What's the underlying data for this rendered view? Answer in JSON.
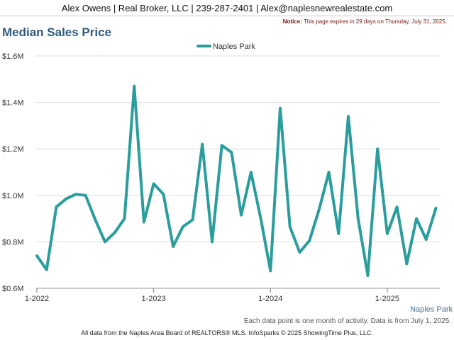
{
  "header": {
    "contact": "Alex Owens | Real Broker, LLC | 239-287-2401 | Alex@naplesnewrealestate.com",
    "notice_label": "Notice:",
    "notice_text": "This page expires in 29 days on Thursday, July 31, 2025."
  },
  "footer": {
    "source": "All data from the Naples Area Board of REALTORS® MLS. InfoSparks © 2025 ShowingTime Plus, LLC."
  },
  "colors": {
    "series": "#2a9d9c",
    "title": "#2f5b82",
    "grid": "#dddddd"
  },
  "chart_data": {
    "type": "line",
    "title": "Median Sales Price",
    "legend_position": "top-center",
    "grid": true,
    "ylim": [
      600000,
      1600000
    ],
    "y_ticks": [
      600000,
      800000,
      1000000,
      1200000,
      1400000,
      1600000
    ],
    "y_tick_labels": [
      "$0.6M",
      "$0.8M",
      "$1.0M",
      "$1.2M",
      "$1.4M",
      "$1.6M"
    ],
    "x_ticks": [
      "2022-01",
      "2023-01",
      "2024-01",
      "2025-01"
    ],
    "x_tick_labels": [
      "1-2022",
      "1-2023",
      "1-2024",
      "1-2025"
    ],
    "end_label": "Naples Park",
    "note": "Each data point is one month of activity. Data is from July 1, 2025.",
    "series": [
      {
        "name": "Naples Park",
        "x": [
          "2022-01",
          "2022-02",
          "2022-03",
          "2022-04",
          "2022-05",
          "2022-06",
          "2022-07",
          "2022-08",
          "2022-09",
          "2022-10",
          "2022-11",
          "2022-12",
          "2023-01",
          "2023-02",
          "2023-03",
          "2023-04",
          "2023-05",
          "2023-06",
          "2023-07",
          "2023-08",
          "2023-09",
          "2023-10",
          "2023-11",
          "2023-12",
          "2024-01",
          "2024-02",
          "2024-03",
          "2024-04",
          "2024-05",
          "2024-06",
          "2024-07",
          "2024-08",
          "2024-09",
          "2024-10",
          "2024-11",
          "2024-12",
          "2025-01",
          "2025-02",
          "2025-03",
          "2025-04",
          "2025-05",
          "2025-06"
        ],
        "values": [
          740000,
          680000,
          950000,
          985000,
          1005000,
          1000000,
          895000,
          800000,
          840000,
          900000,
          1470000,
          885000,
          1050000,
          1005000,
          780000,
          865000,
          895000,
          1220000,
          800000,
          1215000,
          1185000,
          915000,
          1100000,
          900000,
          675000,
          1375000,
          865000,
          755000,
          805000,
          940000,
          1100000,
          835000,
          1340000,
          900000,
          655000,
          1200000,
          835000,
          950000,
          705000,
          900000,
          810000,
          945000
        ]
      }
    ]
  }
}
